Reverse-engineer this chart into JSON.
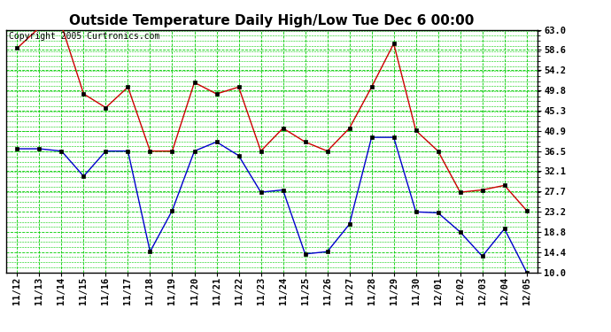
{
  "title": "Outside Temperature Daily High/Low Tue Dec 6 00:00",
  "copyright": "Copyright 2005 Curtronics.com",
  "x_labels": [
    "11/12",
    "11/13",
    "11/14",
    "11/15",
    "11/16",
    "11/17",
    "11/18",
    "11/19",
    "11/20",
    "11/21",
    "11/22",
    "11/23",
    "11/24",
    "11/25",
    "11/26",
    "11/27",
    "11/28",
    "11/29",
    "11/30",
    "12/01",
    "12/02",
    "12/03",
    "12/04",
    "12/05"
  ],
  "high_values": [
    59.0,
    63.5,
    64.0,
    49.0,
    46.0,
    50.5,
    36.5,
    36.5,
    51.5,
    49.0,
    50.5,
    36.5,
    41.5,
    38.5,
    36.5,
    41.5,
    50.5,
    60.0,
    41.0,
    36.5,
    27.5,
    28.0,
    29.0,
    23.5
  ],
  "low_values": [
    37.0,
    37.0,
    36.5,
    31.0,
    36.5,
    36.5,
    14.5,
    23.5,
    36.5,
    38.5,
    35.5,
    27.5,
    28.0,
    14.0,
    14.5,
    20.5,
    39.5,
    39.5,
    23.2,
    23.0,
    18.8,
    13.5,
    19.5,
    10.0
  ],
  "high_color": "#cc0000",
  "low_color": "#0000cc",
  "bg_color": "#ffffff",
  "grid_color": "#00cc00",
  "y_min": 10.0,
  "y_max": 63.0,
  "y_ticks": [
    10.0,
    14.4,
    18.8,
    23.2,
    27.7,
    32.1,
    36.5,
    40.9,
    45.3,
    49.8,
    54.2,
    58.6,
    63.0
  ],
  "title_fontsize": 11,
  "copyright_fontsize": 7,
  "tick_fontsize": 7.5,
  "marker_size": 3.0,
  "line_width": 1.0
}
